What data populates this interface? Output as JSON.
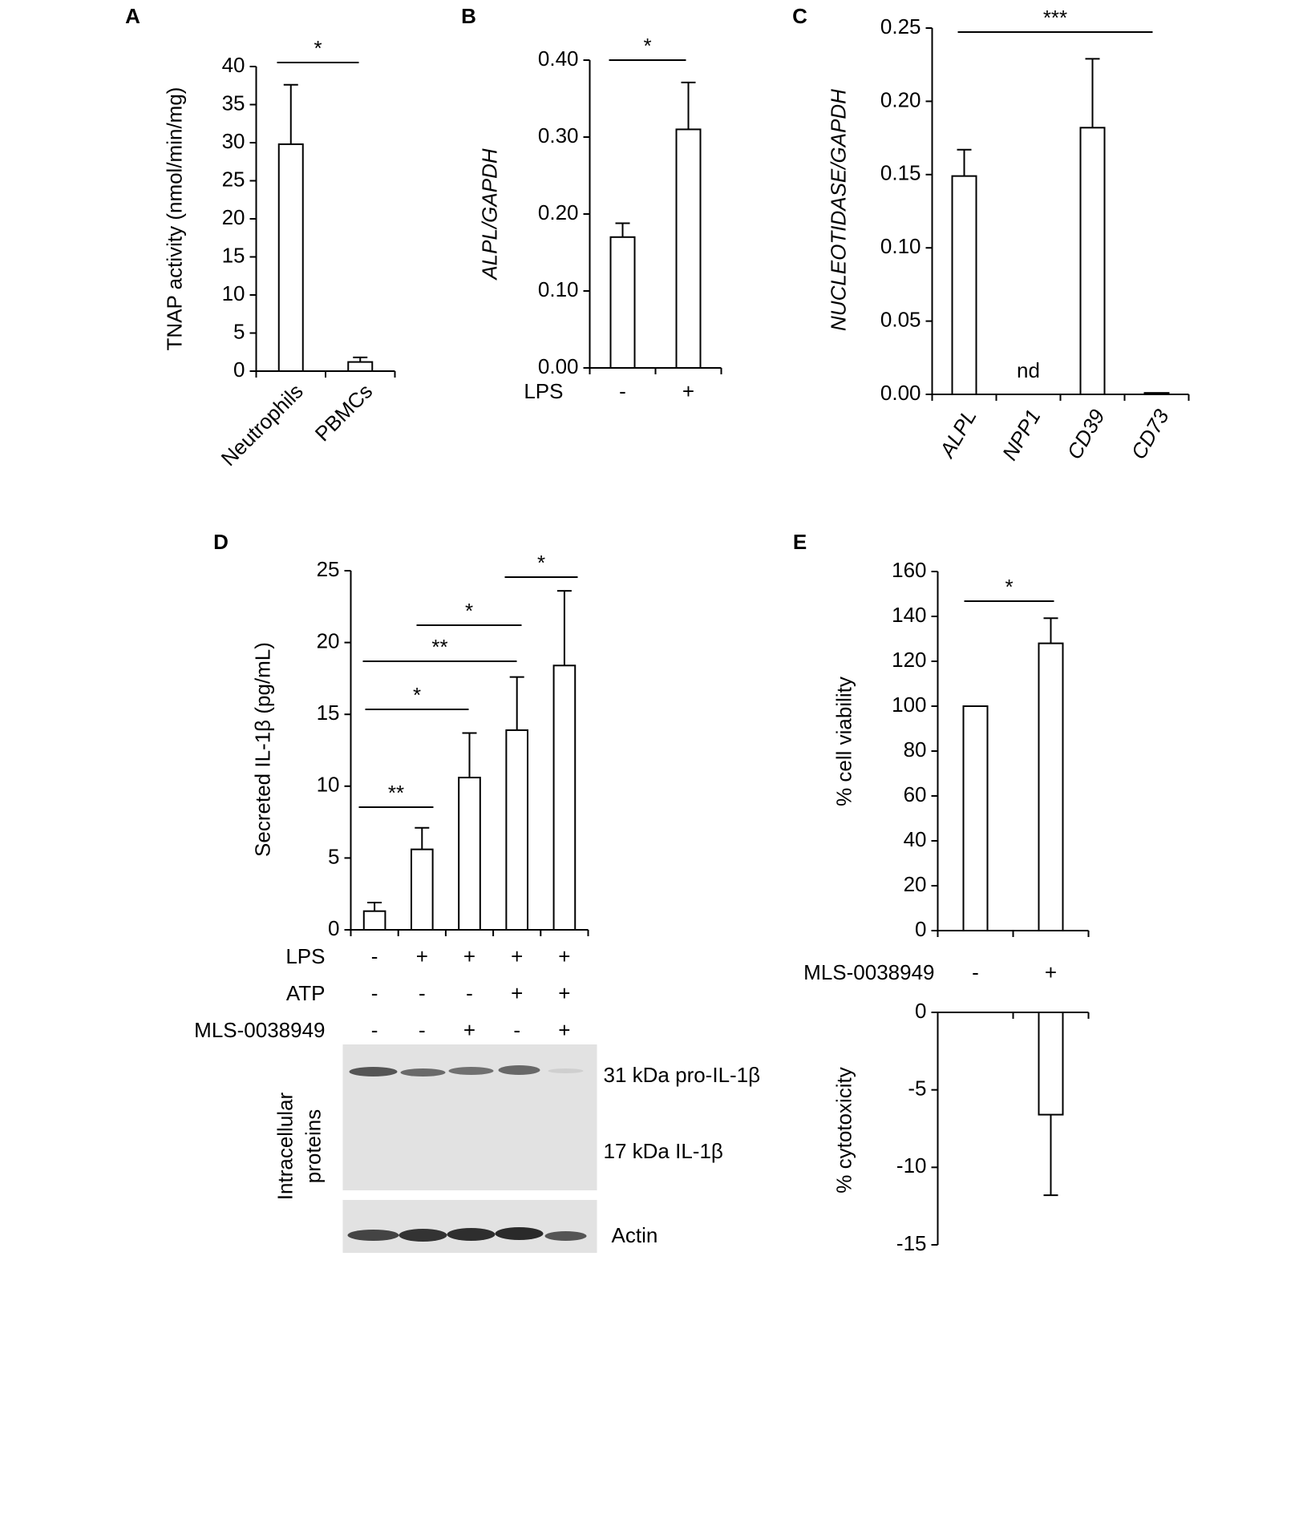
{
  "chart_data": [
    {
      "panel": "A",
      "type": "bar",
      "ylabel": "TNAP activity (nmol/min/mg)",
      "categories": [
        "Neutrophils",
        "PBMCs"
      ],
      "values": [
        29.8,
        1.2
      ],
      "errors": [
        7.8,
        0.6
      ],
      "ylim": [
        0,
        40
      ],
      "yticks": [
        0,
        5,
        10,
        15,
        20,
        25,
        30,
        35,
        40
      ],
      "significance": [
        "*"
      ],
      "color": "#ffffff"
    },
    {
      "panel": "B",
      "type": "bar",
      "ylabel": "ALPL/GAPDH",
      "x_label": "LPS",
      "categories": [
        "-",
        "+"
      ],
      "values": [
        0.17,
        0.31
      ],
      "errors": [
        0.018,
        0.061
      ],
      "ylim": [
        0,
        0.4
      ],
      "yticks": [
        {
          "value": 0,
          "label": "0.00"
        },
        {
          "value": 0.1,
          "label": "0.10"
        },
        {
          "value": 0.2,
          "label": "0.20"
        },
        {
          "value": 0.3,
          "label": "0.30"
        },
        {
          "value": 0.4,
          "label": "0.40"
        }
      ],
      "significance": [
        "*"
      ],
      "color": "#ffffff"
    },
    {
      "panel": "C",
      "type": "bar",
      "ylabel": "NUCLEOTIDASE/GAPDH",
      "categories": [
        "ALPL",
        "NPP1",
        "CD39",
        "CD73"
      ],
      "values": [
        0.149,
        null,
        0.182,
        0.001
      ],
      "errors": [
        0.018,
        null,
        0.047,
        null
      ],
      "annotations": [
        "nd"
      ],
      "ylim": [
        0,
        0.25
      ],
      "yticks": [
        {
          "value": 0,
          "label": "0.00"
        },
        {
          "value": 0.05,
          "label": "0.05"
        },
        {
          "value": 0.1,
          "label": "0.10"
        },
        {
          "value": 0.15,
          "label": "0.15"
        },
        {
          "value": 0.2,
          "label": "0.20"
        },
        {
          "value": 0.25,
          "label": "0.25"
        }
      ],
      "significance": [
        "***"
      ],
      "color": "#ffffff"
    },
    {
      "panel": "D",
      "type": "bar",
      "ylabel": "Secreted IL-1β (pg/mL)",
      "values": [
        1.3,
        5.6,
        10.6,
        13.9,
        18.4
      ],
      "errors": [
        0.6,
        1.5,
        3.1,
        3.7,
        5.2
      ],
      "ylim": [
        0,
        25
      ],
      "yticks": [
        0,
        5,
        10,
        15,
        20,
        25
      ],
      "conditions": [
        {
          "name": "LPS",
          "values": [
            "-",
            "+",
            "+",
            "+",
            "+"
          ]
        },
        {
          "name": "ATP",
          "values": [
            "-",
            "-",
            "-",
            "+",
            "+"
          ]
        },
        {
          "name": "MLS-0038949",
          "values": [
            "-",
            "-",
            "+",
            "-",
            "+"
          ]
        }
      ],
      "significance": [
        "**",
        "*",
        "**",
        "*",
        "*"
      ],
      "blot": {
        "band_labels": [
          "31 kDa pro-IL-1β",
          "17 kDa IL-1β",
          "Actin"
        ],
        "side_label": [
          "Intracellular",
          "proteins"
        ]
      },
      "color": "#ffffff"
    },
    {
      "panel": "E",
      "type": "bar",
      "ylabel": "% cell viability",
      "x_label": "MLS-0038949",
      "categories": [
        "-",
        "+"
      ],
      "values": [
        100,
        128
      ],
      "errors": [
        null,
        11.2
      ],
      "ylim": [
        0,
        160
      ],
      "yticks": [
        0,
        20,
        40,
        60,
        80,
        100,
        120,
        140,
        160
      ],
      "significance": [
        "*"
      ],
      "color": "#ffffff"
    },
    {
      "type": "bar",
      "ylabel": "% cytotoxicity",
      "values": [
        null,
        -6.6
      ],
      "errors": [
        null,
        5.2
      ],
      "ylim": [
        -15,
        0
      ],
      "yticks": [
        0,
        -5,
        -10,
        -15
      ],
      "color": "#ffffff"
    }
  ]
}
